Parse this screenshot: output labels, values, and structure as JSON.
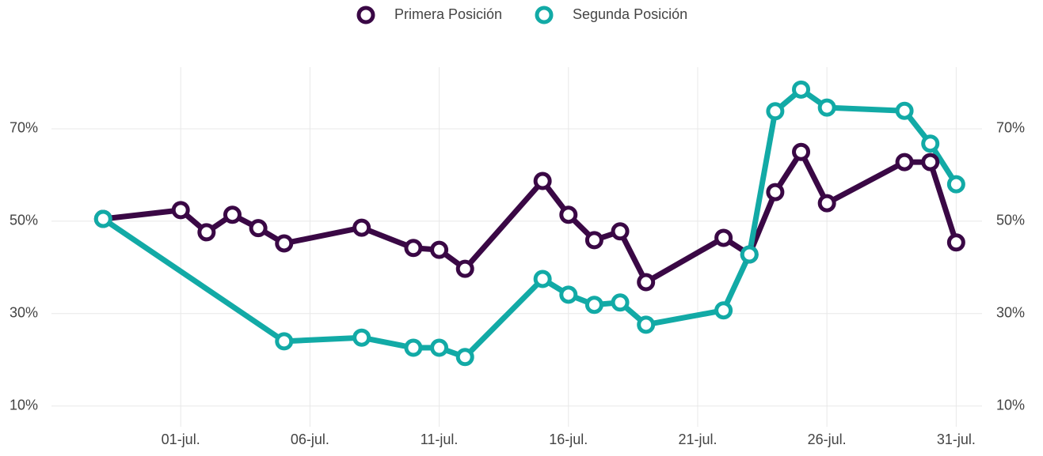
{
  "chart_data": {
    "type": "line",
    "xlim": [
      "06-26",
      "08-01"
    ],
    "xticks": [
      {
        "value": "07-01",
        "label": "01-jul."
      },
      {
        "value": "07-06",
        "label": "06-jul."
      },
      {
        "value": "07-11",
        "label": "11-jul."
      },
      {
        "value": "07-16",
        "label": "16-jul."
      },
      {
        "value": "07-21",
        "label": "21-jul."
      },
      {
        "value": "07-26",
        "label": "26-jul."
      },
      {
        "value": "07-31",
        "label": "31-jul."
      }
    ],
    "ylim": [
      5.5,
      84.2
    ],
    "yticks": [
      {
        "value": 10,
        "label": "10%"
      },
      {
        "value": 30,
        "label": "30%"
      },
      {
        "value": 50,
        "label": "50%"
      },
      {
        "value": 70,
        "label": "70%"
      }
    ],
    "grid": true,
    "legend": "top",
    "series": [
      {
        "name": "Primera Posición",
        "color": "#3a0845",
        "x": [
          "06-28",
          "07-01",
          "07-02",
          "07-03",
          "07-04",
          "07-05",
          "07-08",
          "07-10",
          "07-11",
          "07-12",
          "07-15",
          "07-16",
          "07-17",
          "07-18",
          "07-19",
          "07-22",
          "07-23",
          "07-24",
          "07-25",
          "07-26",
          "07-29",
          "07-30",
          "07-31"
        ],
        "values": [
          50.5,
          52.4,
          47.6,
          51.4,
          48.5,
          45.2,
          48.6,
          44.2,
          43.8,
          39.7,
          58.7,
          51.4,
          45.9,
          47.8,
          36.8,
          46.4,
          42.8,
          56.3,
          65.0,
          53.9,
          62.8,
          62.8,
          45.4
        ]
      },
      {
        "name": "Segunda Posición",
        "color": "#12aaa6",
        "x": [
          "06-28",
          "07-05",
          "07-08",
          "07-10",
          "07-11",
          "07-12",
          "07-15",
          "07-16",
          "07-17",
          "07-18",
          "07-19",
          "07-22",
          "07-23",
          "07-24",
          "07-25",
          "07-26",
          "07-29",
          "07-30",
          "07-31"
        ],
        "values": [
          50.5,
          24.0,
          24.8,
          22.6,
          22.6,
          20.6,
          37.5,
          34.1,
          31.9,
          32.4,
          27.6,
          30.7,
          42.8,
          73.8,
          78.5,
          74.6,
          73.9,
          66.8,
          58.0
        ]
      }
    ]
  }
}
